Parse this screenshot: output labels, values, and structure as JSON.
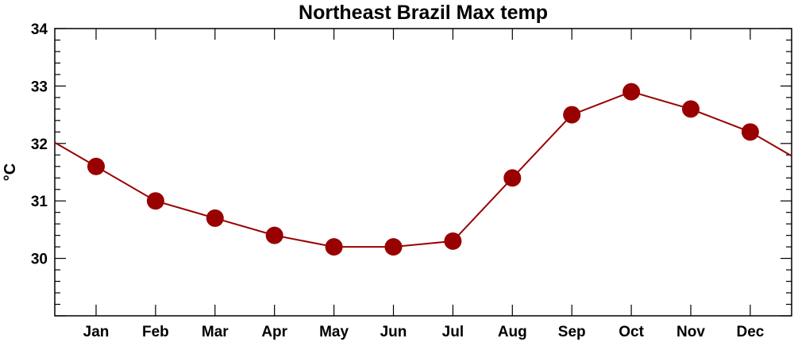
{
  "chart_data": {
    "type": "line",
    "title": "Northeast Brazil Max temp",
    "xlabel": "",
    "ylabel": "°C",
    "categories": [
      "Jan",
      "Feb",
      "Mar",
      "Apr",
      "May",
      "Jun",
      "Jul",
      "Aug",
      "Sep",
      "Oct",
      "Nov",
      "Dec"
    ],
    "values": [
      31.6,
      31.0,
      30.7,
      30.4,
      30.2,
      30.2,
      30.3,
      31.4,
      32.5,
      32.9,
      32.6,
      32.2
    ],
    "ylim": [
      29.0,
      34.0
    ],
    "yticks": [
      "30",
      "31",
      "32",
      "33",
      "34"
    ],
    "grid": false,
    "color": "#990000"
  }
}
